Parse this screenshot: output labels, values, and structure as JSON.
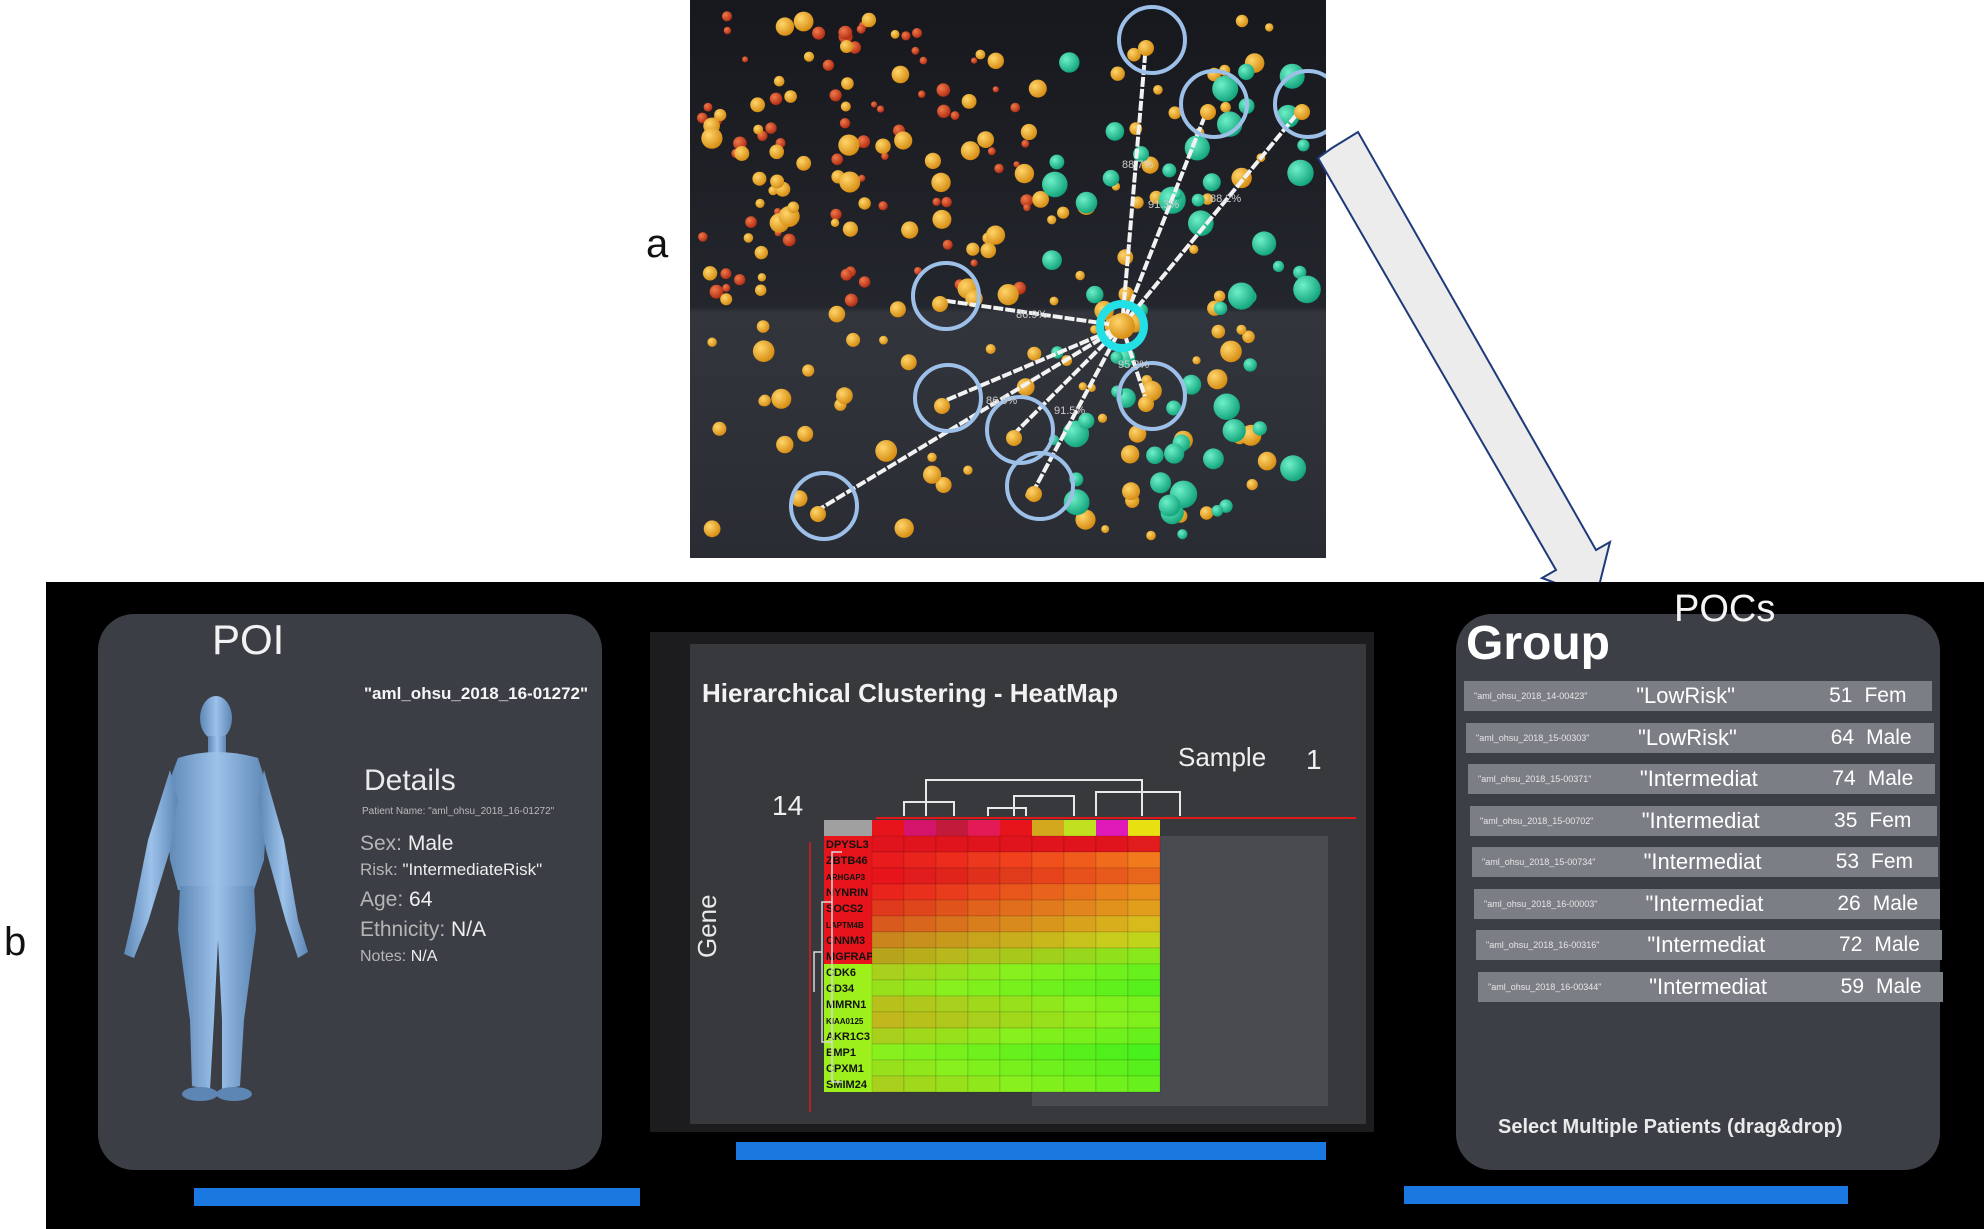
{
  "figure": {
    "label_a": "a",
    "label_b": "b"
  },
  "scatter": {
    "similarity_labels": [
      "88.7%",
      "91.3%",
      "88.2%",
      "86.6%",
      "95.2%",
      "86.9%",
      "91.5%"
    ]
  },
  "poi": {
    "title": "POI",
    "patient_id": "\"aml_ohsu_2018_16-01272\"",
    "details_heading": "Details",
    "patient_name_line": "Patient Name: \"aml_ohsu_2018_16-01272\"",
    "sex_label": "Sex:",
    "sex_value": "Male",
    "risk_label": "Risk:",
    "risk_value": "\"IntermediateRisk\"",
    "age_label": "Age:",
    "age_value": "64",
    "ethnicity_label": "Ethnicity:",
    "ethnicity_value": "N/A",
    "notes_label": "Notes:",
    "notes_value": "N/A"
  },
  "heatmap": {
    "title": "Hierarchical Clustering - HeatMap",
    "sample_label": "Sample",
    "sample_count": "1",
    "gene_count": "14",
    "gene_axis_label": "Gene",
    "genes": [
      "DPYSL3",
      "ZBTB46",
      "ARHGAP3",
      "NYNRIN",
      "SOCS2",
      "LAPTM4B",
      "CNNM3",
      "MGFRAP",
      "CDK6",
      "CD34",
      "MMRN1",
      "KIAA0125",
      "AKR1C3",
      "EMP1",
      "CPXM1",
      "SMIM24"
    ],
    "column_colors": [
      "#a0a0a0",
      "#e8141c",
      "#d4146a",
      "#c21a3a",
      "#e41a56",
      "#e8141c",
      "#d4a81c",
      "#c0e020",
      "#e01ab8",
      "#e8e010"
    ],
    "cells": [
      [
        "#e0141c",
        "#e0141c",
        "#e0141c",
        "#e0141c",
        "#e0141c",
        "#e0141c",
        "#e0141c",
        "#e0141c",
        "#e01c1c"
      ],
      [
        "#e81c1c",
        "#e8241c",
        "#ec2c1c",
        "#ec381c",
        "#f0401c",
        "#f0501c",
        "#f05c1c",
        "#f06c1c",
        "#f07a1c"
      ],
      [
        "#e8141c",
        "#e01c1c",
        "#e0241c",
        "#e0301c",
        "#e03c1c",
        "#e8441c",
        "#e8501c",
        "#e85a1c",
        "#e8661c"
      ],
      [
        "#e8241c",
        "#e8301c",
        "#e83c1c",
        "#e8481c",
        "#e8561c",
        "#e8641c",
        "#e8721c",
        "#e8801c",
        "#e88c1c"
      ],
      [
        "#e03a1c",
        "#e0461c",
        "#e0541c",
        "#e0621c",
        "#e06e1c",
        "#e07a1c",
        "#e0861c",
        "#e0921c",
        "#e09e1c"
      ],
      [
        "#d85a1c",
        "#d8661c",
        "#d8721c",
        "#d87e1c",
        "#d88a1c",
        "#d8961c",
        "#d8a21c",
        "#d8ae1c",
        "#d8ba1c"
      ],
      [
        "#c8861c",
        "#c8901c",
        "#c89a1c",
        "#c8a41c",
        "#c8ae1c",
        "#c8b81c",
        "#c8c21c",
        "#c8cc1c",
        "#c0d41c"
      ],
      [
        "#b8a41c",
        "#b8ae1c",
        "#b8b81c",
        "#b0c01c",
        "#a8c81c",
        "#a0d01c",
        "#98d81c",
        "#90e01c",
        "#88e81c"
      ],
      [
        "#a8d01c",
        "#a0d81c",
        "#98e01c",
        "#90e81c",
        "#88f01c",
        "#80f01c",
        "#78f01c",
        "#70f01c",
        "#68f01c"
      ],
      [
        "#98e01c",
        "#90e81c",
        "#88f01c",
        "#80f01c",
        "#78f01c",
        "#70f01c",
        "#68f01c",
        "#60f01c",
        "#58f01c"
      ],
      [
        "#b8c01c",
        "#b0c81c",
        "#a8d01c",
        "#a0d81c",
        "#98e01c",
        "#90e81c",
        "#88f01c",
        "#80f01c",
        "#78f01c"
      ],
      [
        "#c0b81c",
        "#b8c01c",
        "#b0c81c",
        "#a8d01c",
        "#a0d81c",
        "#98e01c",
        "#90e81c",
        "#88f01c",
        "#80f01c"
      ],
      [
        "#a8d01c",
        "#a0d81c",
        "#98e01c",
        "#90e81c",
        "#88f01c",
        "#80f01c",
        "#78f01c",
        "#70f01c",
        "#68f01c"
      ],
      [
        "#88f01c",
        "#80f01c",
        "#78f01c",
        "#70f01c",
        "#68f01c",
        "#60f01c",
        "#58f01c",
        "#50f01c",
        "#48f01c"
      ],
      [
        "#98e01c",
        "#90e81c",
        "#88f01c",
        "#80f01c",
        "#78f01c",
        "#70f01c",
        "#68f01c",
        "#60f01c",
        "#58f01c"
      ],
      [
        "#a8d01c",
        "#a0d81c",
        "#98e01c",
        "#90e81c",
        "#88f01c",
        "#80f01c",
        "#78f01c",
        "#70f01c",
        "#68f01c"
      ]
    ]
  },
  "group": {
    "title": "Group",
    "pocs_label": "POCs",
    "footer": "Select Multiple Patients (drag&drop)",
    "rows": [
      {
        "id": "\"aml_ohsu_2018_14-00423\"",
        "risk": "\"LowRisk\"",
        "age": "51",
        "sex": "Fem"
      },
      {
        "id": "\"aml_ohsu_2018_15-00303\"",
        "risk": "\"LowRisk\"",
        "age": "64",
        "sex": "Male"
      },
      {
        "id": "\"aml_ohsu_2018_15-00371\"",
        "risk": "\"Intermediat",
        "age": "74",
        "sex": "Male"
      },
      {
        "id": "\"aml_ohsu_2018_15-00702\"",
        "risk": "\"Intermediat",
        "age": "35",
        "sex": "Fem"
      },
      {
        "id": "\"aml_ohsu_2018_15-00734\"",
        "risk": "\"Intermediat",
        "age": "53",
        "sex": "Fem"
      },
      {
        "id": "\"aml_ohsu_2018_16-00003\"",
        "risk": "\"Intermediat",
        "age": "26",
        "sex": "Male"
      },
      {
        "id": "\"aml_ohsu_2018_16-00316\"",
        "risk": "\"Intermediat",
        "age": "72",
        "sex": "Male"
      },
      {
        "id": "\"aml_ohsu_2018_16-00344\"",
        "risk": "\"Intermediat",
        "age": "59",
        "sex": "Male"
      }
    ]
  }
}
